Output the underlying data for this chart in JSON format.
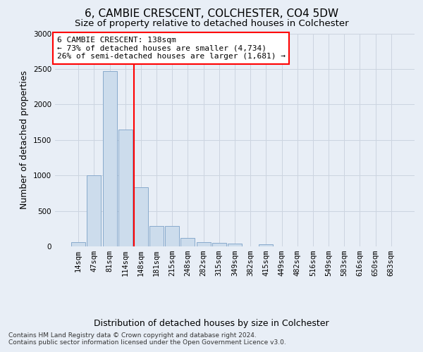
{
  "title": "6, CAMBIE CRESCENT, COLCHESTER, CO4 5DW",
  "subtitle": "Size of property relative to detached houses in Colchester",
  "xlabel": "Distribution of detached houses by size in Colchester",
  "ylabel": "Number of detached properties",
  "footer_line1": "Contains HM Land Registry data © Crown copyright and database right 2024.",
  "footer_line2": "Contains public sector information licensed under the Open Government Licence v3.0.",
  "bar_labels": [
    "14sqm",
    "47sqm",
    "81sqm",
    "114sqm",
    "148sqm",
    "181sqm",
    "215sqm",
    "248sqm",
    "282sqm",
    "315sqm",
    "349sqm",
    "382sqm",
    "415sqm",
    "449sqm",
    "482sqm",
    "516sqm",
    "549sqm",
    "583sqm",
    "616sqm",
    "650sqm",
    "683sqm"
  ],
  "bar_values": [
    55,
    1000,
    2470,
    1650,
    830,
    285,
    285,
    120,
    55,
    45,
    35,
    0,
    30,
    0,
    0,
    0,
    0,
    0,
    0,
    0,
    0
  ],
  "bar_color": "#ccdcec",
  "bar_edgecolor": "#88aacc",
  "grid_color": "#ccd4e0",
  "background_color": "#e8eef6",
  "vline_color": "red",
  "annotation_text": "6 CAMBIE CRESCENT: 138sqm\n← 73% of detached houses are smaller (4,734)\n26% of semi-detached houses are larger (1,681) →",
  "annotation_box_color": "white",
  "annotation_box_edgecolor": "red",
  "ylim": [
    0,
    3000
  ],
  "yticks": [
    0,
    500,
    1000,
    1500,
    2000,
    2500,
    3000
  ],
  "title_fontsize": 11,
  "subtitle_fontsize": 9.5,
  "axis_label_fontsize": 9,
  "tick_fontsize": 7.5,
  "annotation_fontsize": 8
}
